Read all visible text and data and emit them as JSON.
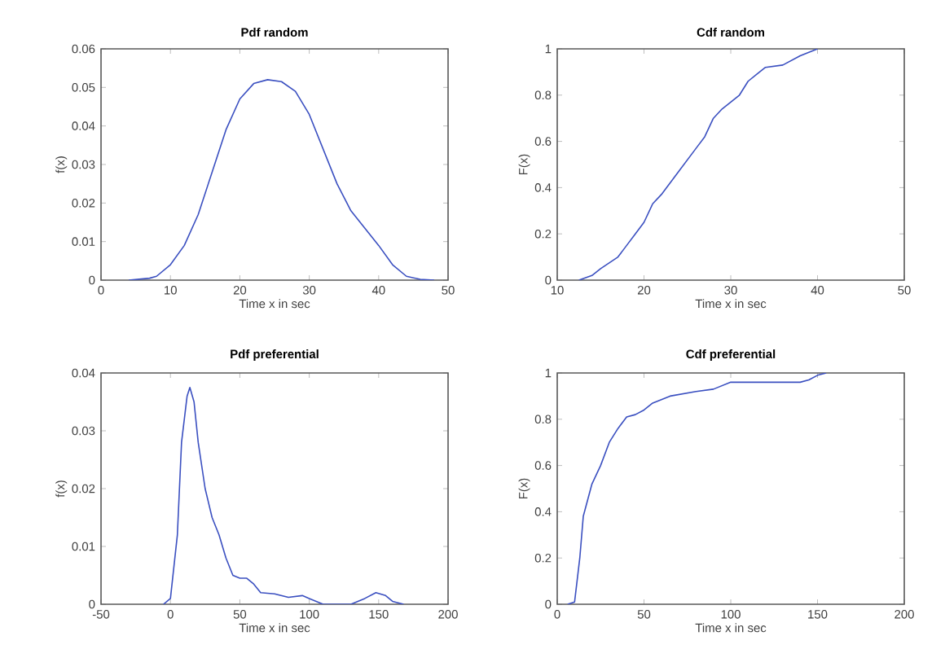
{
  "chart_data": [
    {
      "type": "line",
      "title": "**Pdf random**",
      "xlabel": "Time x in sec",
      "ylabel": "f(x)",
      "xlim": [
        0,
        50
      ],
      "xticks": [
        0,
        10,
        20,
        30,
        40,
        50
      ],
      "ylim": [
        0,
        0.06
      ],
      "yticks": [
        0,
        0.01,
        0.02,
        0.03,
        0.04,
        0.05,
        0.06
      ],
      "series": [
        {
          "color": "#3a4fc0",
          "x": [
            4,
            7,
            8,
            10,
            12,
            14,
            16,
            18,
            20,
            22,
            24,
            26,
            28,
            30,
            32,
            34,
            36,
            38,
            40,
            42,
            44,
            46,
            48
          ],
          "values": [
            0,
            0.0005,
            0.001,
            0.004,
            0.009,
            0.017,
            0.028,
            0.039,
            0.047,
            0.051,
            0.052,
            0.0515,
            0.049,
            0.043,
            0.034,
            0.025,
            0.018,
            0.0135,
            0.009,
            0.004,
            0.001,
            0.0002,
            0
          ]
        }
      ]
    },
    {
      "type": "line",
      "title": "**Cdf random**",
      "xlabel": "Time x in sec",
      "ylabel": "F(x)",
      "xlim": [
        10,
        50
      ],
      "xticks": [
        10,
        20,
        30,
        40,
        50
      ],
      "ylim": [
        0,
        1
      ],
      "yticks": [
        0,
        0.2,
        0.4,
        0.6,
        0.8,
        1
      ],
      "series": [
        {
          "color": "#3a4fc0",
          "x": [
            12.5,
            14,
            15,
            17,
            18,
            19,
            20,
            21,
            22,
            23,
            24,
            25,
            26,
            27,
            28,
            29,
            30,
            31,
            32,
            33,
            34,
            36,
            37,
            38,
            40
          ],
          "values": [
            0,
            0.02,
            0.05,
            0.1,
            0.15,
            0.2,
            0.25,
            0.33,
            0.37,
            0.42,
            0.47,
            0.52,
            0.57,
            0.62,
            0.7,
            0.74,
            0.77,
            0.8,
            0.86,
            0.89,
            0.92,
            0.93,
            0.95,
            0.97,
            1
          ]
        }
      ]
    },
    {
      "type": "line",
      "title": "**Pdf preferential**",
      "xlabel": "Time x in sec",
      "ylabel": "f(x)",
      "xlim": [
        -50,
        200
      ],
      "xticks": [
        -50,
        0,
        50,
        100,
        150,
        200
      ],
      "ylim": [
        0,
        0.04
      ],
      "yticks": [
        0,
        0.01,
        0.02,
        0.03,
        0.04
      ],
      "series": [
        {
          "color": "#3a4fc0",
          "x": [
            -5,
            0,
            5,
            8,
            12,
            14,
            17,
            20,
            25,
            30,
            35,
            40,
            45,
            50,
            55,
            60,
            65,
            75,
            85,
            95,
            100,
            110,
            130,
            140,
            148,
            155,
            160,
            168
          ],
          "values": [
            0,
            0.001,
            0.012,
            0.028,
            0.036,
            0.0375,
            0.035,
            0.028,
            0.02,
            0.015,
            0.012,
            0.008,
            0.005,
            0.0045,
            0.0045,
            0.0035,
            0.002,
            0.0018,
            0.0012,
            0.0015,
            0.001,
            0,
            0,
            0.001,
            0.002,
            0.0015,
            0.0005,
            0
          ]
        }
      ]
    },
    {
      "type": "line",
      "title": "**Cdf preferential**",
      "xlabel": "Time x in sec",
      "ylabel": "F(x)",
      "xlim": [
        0,
        200
      ],
      "xticks": [
        0,
        50,
        100,
        150,
        200
      ],
      "ylim": [
        0,
        1
      ],
      "yticks": [
        0,
        0.2,
        0.4,
        0.6,
        0.8,
        1
      ],
      "series": [
        {
          "color": "#3a4fc0",
          "x": [
            6,
            10,
            13,
            15,
            20,
            25,
            30,
            35,
            40,
            45,
            50,
            55,
            65,
            80,
            90,
            100,
            140,
            145,
            150,
            155
          ],
          "values": [
            0,
            0.01,
            0.2,
            0.38,
            0.52,
            0.6,
            0.7,
            0.76,
            0.81,
            0.82,
            0.84,
            0.87,
            0.9,
            0.92,
            0.93,
            0.96,
            0.96,
            0.97,
            0.99,
            1
          ]
        }
      ]
    }
  ]
}
